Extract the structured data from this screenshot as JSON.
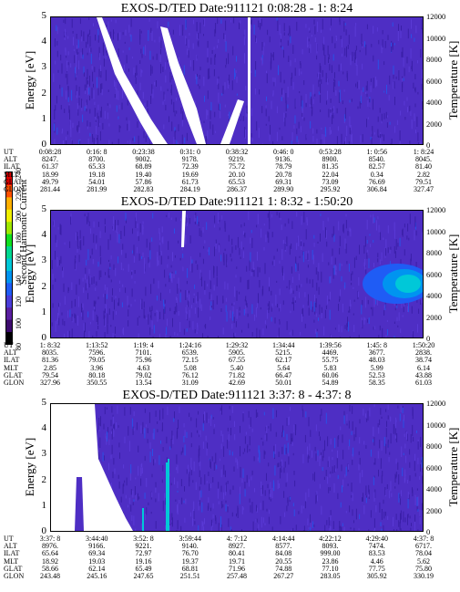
{
  "chart_data": [
    {
      "type": "heatmap",
      "title": "EXOS-D/TED   Date:911121  0:08:28 - 1: 8:24",
      "ylabel": "Energy [eV]",
      "y2label": "Temperature [K]",
      "ylim": [
        0,
        5
      ],
      "y2lim": [
        0,
        12000
      ],
      "yticks": [
        "0",
        "1",
        "2",
        "3",
        "4",
        "5"
      ],
      "y2ticks": [
        "0",
        "2000",
        "4000",
        "6000",
        "8000",
        "10000",
        "12000"
      ],
      "rows": {
        "labels": [
          "UT",
          "ALT",
          "ILAT",
          "MLT",
          "GLAT",
          "GLON"
        ],
        "values": [
          [
            "0:08:28",
            "0:16: 8",
            "0:23:38",
            "0:31: 0",
            "0:38:32",
            "0:46: 0",
            "0:53:28",
            "1: 0:56",
            "1: 8:24"
          ],
          [
            "8247.",
            "8700.",
            "9002.",
            "9178.",
            "9219.",
            "9136.",
            "8900.",
            "8540.",
            "8045."
          ],
          [
            "61.37",
            "65.33",
            "68.89",
            "72.39",
            "75.72",
            "78.79",
            "81.35",
            "82.57",
            "81.40"
          ],
          [
            "18.99",
            "19.18",
            "19.40",
            "19.69",
            "20.10",
            "20.78",
            "22.04",
            "0.34",
            "2.82"
          ],
          [
            "49.79",
            "54.01",
            "57.86",
            "61.73",
            "65.53",
            "69.31",
            "73.09",
            "76.69",
            "79.51"
          ],
          [
            "281.44",
            "281.99",
            "282.83",
            "284.19",
            "286.37",
            "289.90",
            "295.92",
            "306.84",
            "327.47"
          ]
        ]
      }
    },
    {
      "type": "heatmap",
      "title": "EXOS-D/TED   Date:911121  1: 8:32 - 1:50:20",
      "ylabel": "Energy [eV]",
      "y2label": "Temperature [K]",
      "ylim": [
        0,
        5
      ],
      "y2lim": [
        0,
        12000
      ],
      "yticks": [
        "0",
        "1",
        "2",
        "3",
        "4",
        "5"
      ],
      "y2ticks": [
        "0",
        "2000",
        "4000",
        "6000",
        "8000",
        "10000",
        "12000"
      ],
      "rows": {
        "labels": [
          "UT",
          "ALT",
          "ILAT",
          "MLT",
          "GLAT",
          "GLON"
        ],
        "values": [
          [
            "1: 8:32",
            "1:13:52",
            "1:19: 4",
            "1:24:16",
            "1:29:32",
            "1:34:44",
            "1:39:56",
            "1:45: 8",
            "1:50:20"
          ],
          [
            "8035.",
            "7596.",
            "7101.",
            "6539.",
            "5905.",
            "5215.",
            "4469.",
            "3677.",
            "2838."
          ],
          [
            "81.36",
            "79.05",
            "75.96",
            "72.15",
            "67.55",
            "62.17",
            "55.75",
            "48.03",
            "38.74"
          ],
          [
            "2.85",
            "3.96",
            "4.63",
            "5.08",
            "5.40",
            "5.64",
            "5.83",
            "5.99",
            "6.14"
          ],
          [
            "79.54",
            "80.18",
            "79.02",
            "76.12",
            "71.82",
            "66.47",
            "60.06",
            "52.53",
            "43.88"
          ],
          [
            "327.96",
            "350.55",
            "13.54",
            "31.09",
            "42.69",
            "50.01",
            "54.89",
            "58.35",
            "61.03"
          ]
        ]
      }
    },
    {
      "type": "heatmap",
      "title": "EXOS-D/TED   Date:911121  3:37: 8 - 4:37: 8",
      "ylabel": "Energy [eV]",
      "y2label": "Temperature [K]",
      "ylim": [
        0,
        5
      ],
      "y2lim": [
        0,
        12000
      ],
      "yticks": [
        "0",
        "1",
        "2",
        "3",
        "4",
        "5"
      ],
      "y2ticks": [
        "0",
        "2000",
        "4000",
        "6000",
        "8000",
        "10000",
        "12000"
      ],
      "rows": {
        "labels": [
          "UT",
          "ALT",
          "ILAT",
          "MLT",
          "GLAT",
          "GLON"
        ],
        "values": [
          [
            "3:37: 8",
            "3:44:40",
            "3:52: 8",
            "3:59:44",
            "4: 7:12",
            "4:14:44",
            "4:22:12",
            "4:29:40",
            "4:37: 8"
          ],
          [
            "8976.",
            "9166.",
            "9221.",
            "9140.",
            "8927.",
            "8577.",
            "8093.",
            "7474.",
            "6717."
          ],
          [
            "65.64",
            "69.34",
            "72.97",
            "76.70",
            "80.41",
            "84.08",
            "999.00",
            "83.53",
            "78.04"
          ],
          [
            "18.92",
            "19.03",
            "19.16",
            "19.37",
            "19.71",
            "20.55",
            "23.86",
            "4.46",
            "5.62"
          ],
          [
            "58.66",
            "62.14",
            "65.49",
            "68.81",
            "71.96",
            "74.88",
            "77.10",
            "77.75",
            "75.80"
          ],
          [
            "243.48",
            "245.16",
            "247.65",
            "251.51",
            "257.48",
            "267.27",
            "283.05",
            "305.92",
            "330.19"
          ]
        ]
      }
    }
  ],
  "colorbar": {
    "title": "Second Harmonic Current",
    "ticks": [
      "80",
      "100",
      "120",
      "140",
      "160",
      "180",
      "200",
      "220",
      "240"
    ],
    "range": [
      80,
      240
    ],
    "colors": [
      "#000000",
      "#3d0b6e",
      "#5a1fa0",
      "#4a3cd8",
      "#1f5cf5",
      "#0094f0",
      "#00c8d8",
      "#00d890",
      "#10e020",
      "#a0e800",
      "#f0f000",
      "#ffb000",
      "#ff5000",
      "#e00000"
    ]
  },
  "colors": {
    "background": "#4e2ec4",
    "noise": "#3a1fa8",
    "saturated": "#ffffff"
  }
}
